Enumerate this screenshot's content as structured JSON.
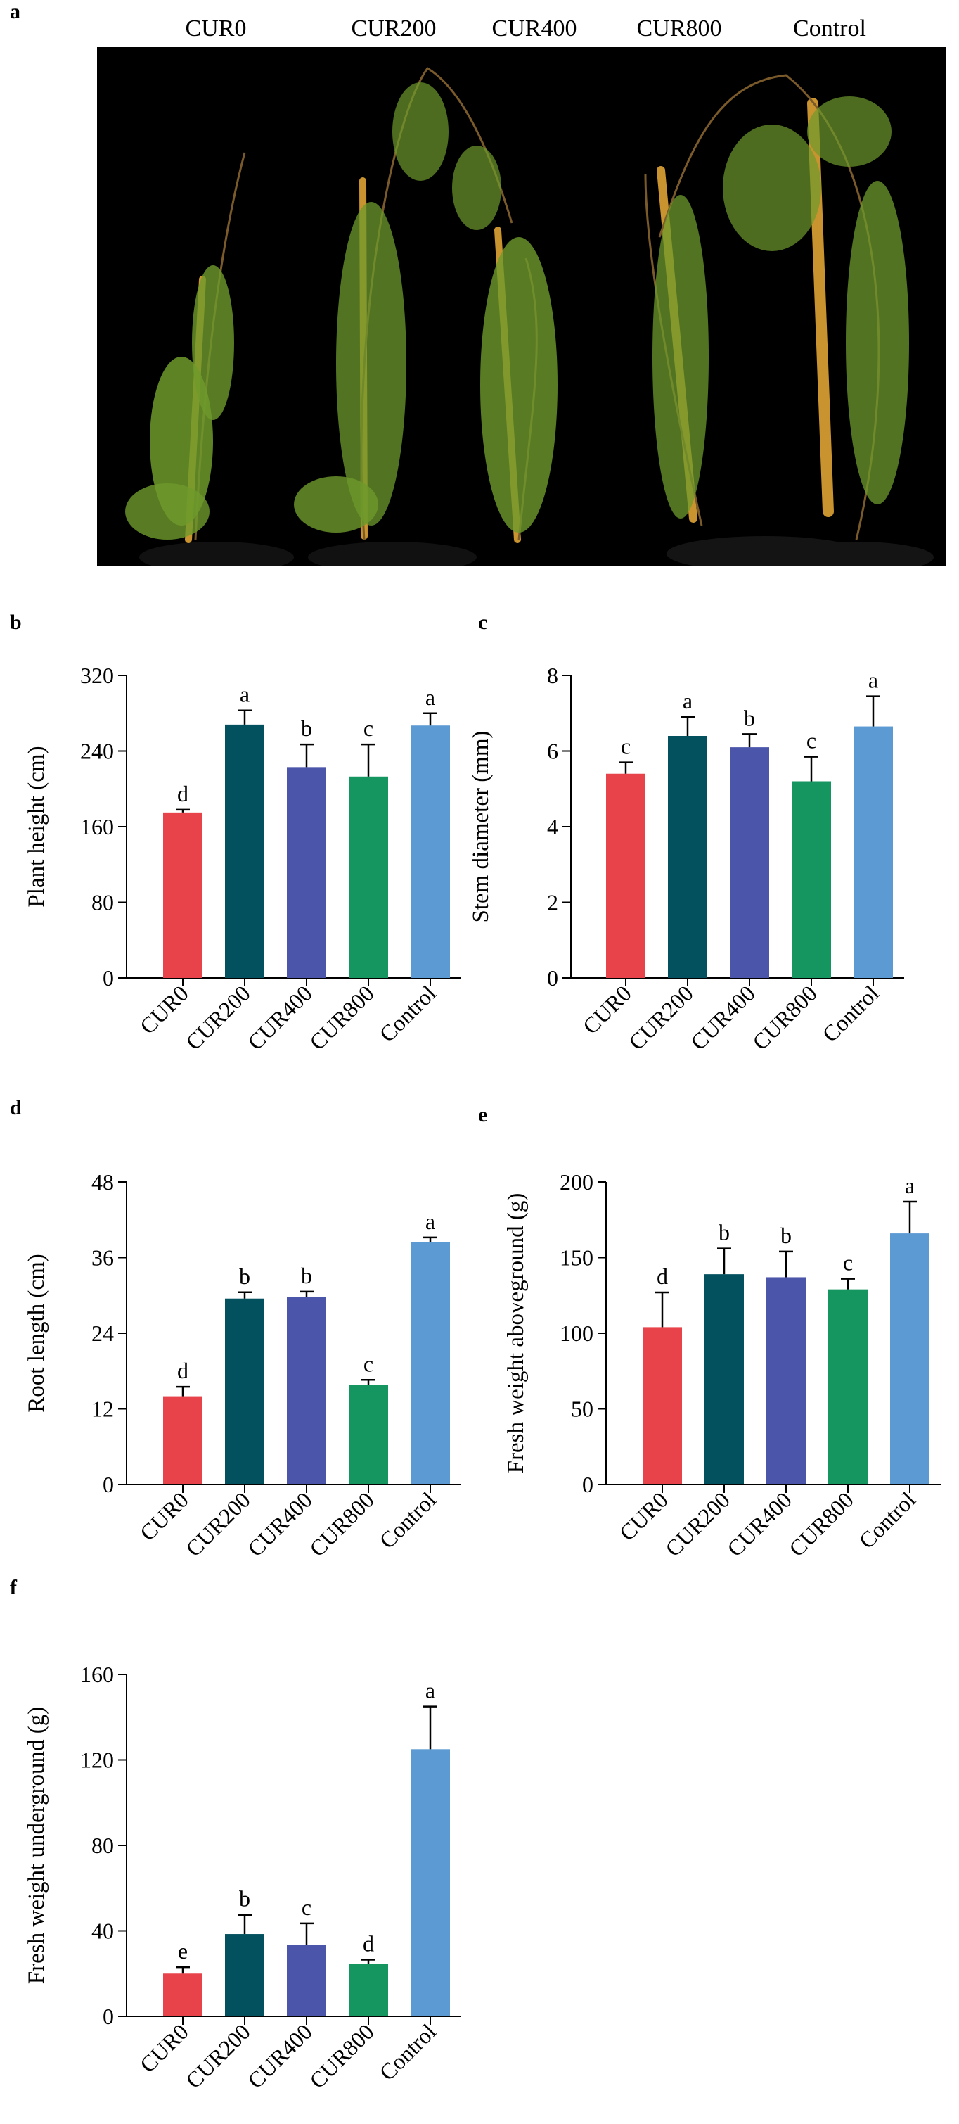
{
  "panel_a": {
    "letter": "a",
    "labels": [
      "CUR0",
      "CUR200",
      "CUR400",
      "CUR800",
      "Control"
    ]
  },
  "colors": {
    "CUR0": "#e8434a",
    "CUR200": "#03505f",
    "CUR400": "#4b55a9",
    "CUR800": "#159660",
    "Control": "#5c9ad3",
    "photo_background": "#000000",
    "foliage": "#6e9a2c",
    "stake": "#c9932f"
  },
  "chart_data": [
    {
      "id": "b",
      "letter": "b",
      "type": "bar",
      "categories": [
        "CUR0",
        "CUR200",
        "CUR400",
        "CUR800",
        "Control"
      ],
      "values": [
        175,
        268,
        223,
        213,
        267
      ],
      "errors": [
        3,
        15,
        24,
        34,
        13
      ],
      "letters": [
        "d",
        "a",
        "b",
        "c",
        "a"
      ],
      "ylabel": "Plant height (cm)",
      "ylim": [
        0,
        320
      ],
      "yticks": [
        "0",
        "80",
        "160",
        "240",
        "320"
      ]
    },
    {
      "id": "c",
      "letter": "c",
      "type": "bar",
      "categories": [
        "CUR0",
        "CUR200",
        "CUR400",
        "CUR800",
        "Control"
      ],
      "values": [
        5.4,
        6.4,
        6.1,
        5.2,
        6.65
      ],
      "errors": [
        0.3,
        0.5,
        0.35,
        0.65,
        0.8
      ],
      "letters": [
        "c",
        "a",
        "b",
        "c",
        "a"
      ],
      "ylabel": "Stem diameter (mm)",
      "ylim": [
        0,
        8
      ],
      "yticks": [
        "0",
        "2",
        "4",
        "6",
        "8"
      ]
    },
    {
      "id": "d",
      "letter": "d",
      "type": "bar",
      "categories": [
        "CUR0",
        "CUR200",
        "CUR400",
        "CUR800",
        "Control"
      ],
      "values": [
        14,
        29.5,
        29.8,
        15.8,
        38.4
      ],
      "errors": [
        1.5,
        1,
        0.8,
        0.8,
        0.8
      ],
      "letters": [
        "d",
        "b",
        "b",
        "c",
        "a"
      ],
      "ylabel": "Root length (cm)",
      "ylim": [
        0,
        48
      ],
      "yticks": [
        "0",
        "12",
        "24",
        "36",
        "48"
      ]
    },
    {
      "id": "e",
      "letter": "e",
      "type": "bar",
      "categories": [
        "CUR0",
        "CUR200",
        "CUR400",
        "CUR800",
        "Control"
      ],
      "values": [
        104,
        139,
        137,
        129,
        166
      ],
      "errors": [
        23,
        17,
        17,
        7,
        21
      ],
      "letters": [
        "d",
        "b",
        "b",
        "c",
        "a"
      ],
      "ylabel": "Fresh weight aboveground (g)",
      "ylim": [
        0,
        200
      ],
      "yticks": [
        "0",
        "50",
        "100",
        "150",
        "200"
      ]
    },
    {
      "id": "f",
      "letter": "f",
      "type": "bar",
      "categories": [
        "CUR0",
        "CUR200",
        "CUR400",
        "CUR800",
        "Control"
      ],
      "values": [
        20,
        38.5,
        33.5,
        24.5,
        125
      ],
      "errors": [
        3,
        9,
        10,
        2,
        20
      ],
      "letters": [
        "e",
        "b",
        "c",
        "d",
        "a"
      ],
      "ylabel": "Fresh weight underground (g)",
      "ylim": [
        0,
        160
      ],
      "yticks": [
        "0",
        "40",
        "80",
        "120",
        "160"
      ]
    }
  ]
}
